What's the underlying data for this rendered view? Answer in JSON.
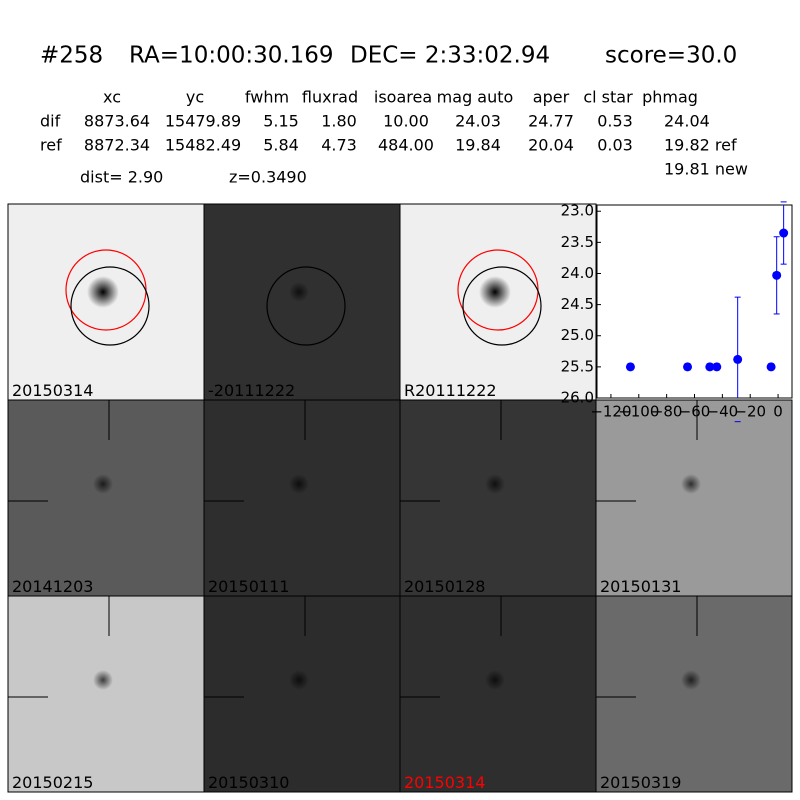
{
  "header": {
    "id": "#258",
    "ra": "RA=10:00:30.169",
    "dec": "DEC= 2:33:02.94",
    "score": "score=30.0"
  },
  "table": {
    "columns": [
      "xc",
      "yc",
      "fwhm",
      "fluxrad",
      "isoarea",
      "mag auto",
      "aper",
      "cl star",
      "phmag"
    ],
    "rows": [
      [
        "dif",
        "8873.64",
        "15479.89",
        "5.15",
        "1.80",
        "10.00",
        "24.03",
        "24.77",
        "0.53",
        "24.04"
      ],
      [
        "ref",
        "8872.34",
        "15482.49",
        "5.84",
        "4.73",
        "484.00",
        "19.84",
        "20.04",
        "0.03",
        "19.82 ref"
      ]
    ],
    "extra": "19.81 new"
  },
  "dist": "dist=  2.90",
  "z": "z=0.3490",
  "panels": [
    "20150314",
    "-20111222",
    "R20111222",
    "20141203",
    "20150111",
    "20150128",
    "20150131",
    "20150215",
    "20150310",
    "20150314",
    "20150319"
  ],
  "chart_data": {
    "type": "scatter",
    "color": "#0000ff",
    "x": [
      -106,
      -65,
      -49,
      -44,
      -29,
      -5,
      -1,
      4
    ],
    "values": [
      25.5,
      25.5,
      25.5,
      25.5,
      25.38,
      25.5,
      24.03,
      23.35
    ],
    "errors": [
      0.05,
      0.05,
      0.05,
      0.05,
      1.0,
      0.05,
      0.62,
      0.5
    ],
    "xlim": [
      -130,
      10
    ],
    "ylim": [
      26.0,
      22.9
    ],
    "xticks": [
      {
        "value": -120,
        "label": "−120"
      },
      {
        "value": -100,
        "label": "−100"
      },
      {
        "value": -80,
        "label": "−80"
      },
      {
        "value": -60,
        "label": "−60"
      },
      {
        "value": -40,
        "label": "−40"
      },
      {
        "value": -20,
        "label": "−20"
      },
      0
    ],
    "yticks": [
      {
        "value": 23.0,
        "label": "23.0"
      },
      {
        "value": 23.5,
        "label": "23.5"
      },
      {
        "value": 24.0,
        "label": "24.0"
      },
      {
        "value": 24.5,
        "label": "24.5"
      },
      {
        "value": 25.0,
        "label": "25.0"
      },
      {
        "value": 25.5,
        "label": "25.5"
      },
      {
        "value": 26.0,
        "label": "26.0"
      }
    ]
  }
}
